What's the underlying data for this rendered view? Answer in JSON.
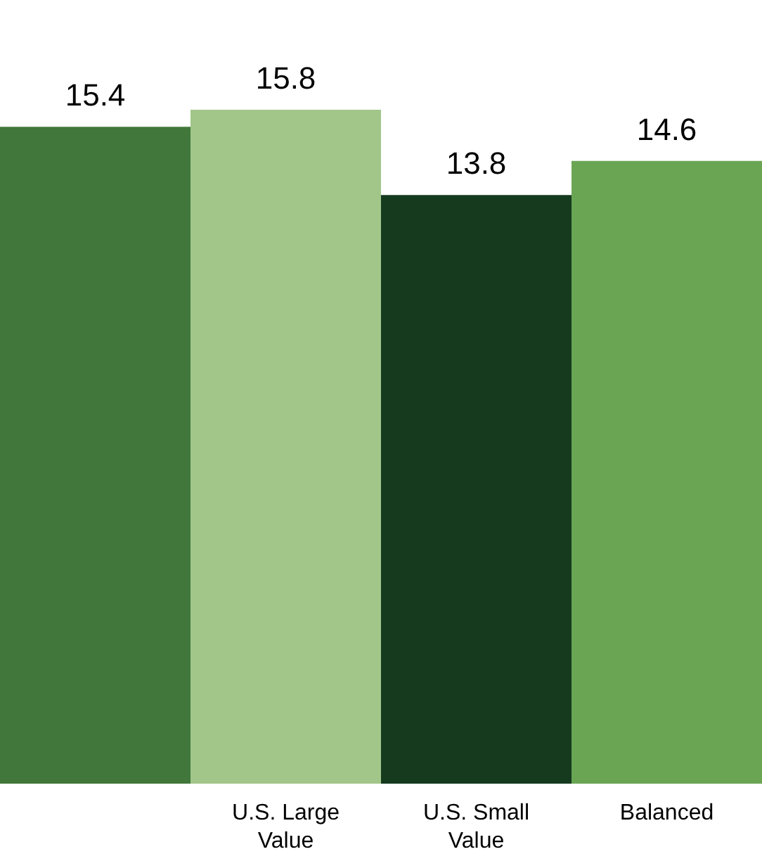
{
  "chart_data": {
    "type": "bar",
    "categories": [
      null,
      "U.S. Large Value",
      "U.S. Small Value",
      "Balanced"
    ],
    "values": [
      15.4,
      15.8,
      13.8,
      14.6
    ],
    "colors": [
      "#41773a",
      "#a2c68a",
      "#153a1e",
      "#6aa554"
    ],
    "data_labels": true,
    "grid": false,
    "legend": false
  }
}
